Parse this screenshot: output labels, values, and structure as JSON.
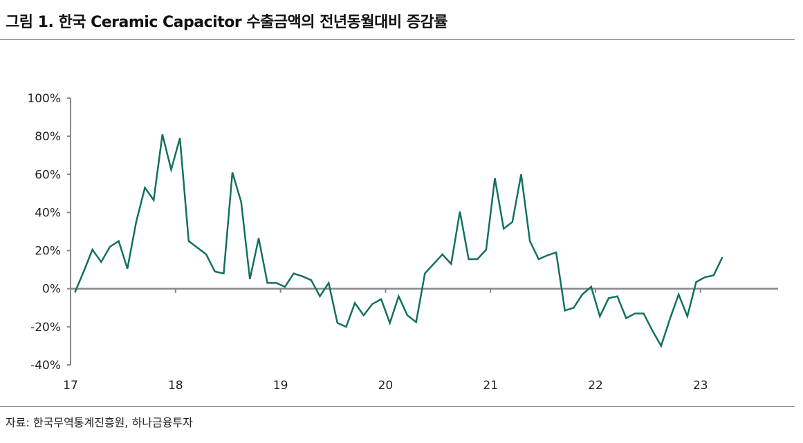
{
  "title": "그림 1. 한국 Ceramic Capacitor 수출금액의 전년동월대비 증감률",
  "source": "자료: 한국무역통계진흥원, 하나금융투자",
  "chart_data": {
    "type": "line",
    "title": "그림 1. 한국 Ceramic Capacitor 수출금액의 전년동월대비 증감률",
    "xlabel": "",
    "ylabel": "",
    "ylim": [
      -40,
      100
    ],
    "yticks": [
      "-40%",
      "-20%",
      "0%",
      "20%",
      "40%",
      "60%",
      "80%",
      "100%"
    ],
    "xticks": [
      "17",
      "18",
      "19",
      "20",
      "21",
      "22",
      "23"
    ],
    "x_start": "2017-01",
    "frequency": "monthly",
    "grid": false,
    "line_color": "#13705f",
    "values": [
      -2,
      9,
      20.5,
      14,
      22,
      25,
      10.5,
      35,
      53,
      46.5,
      81,
      62.5,
      79,
      25,
      21.5,
      18,
      9,
      8,
      61,
      45.5,
      5,
      26.5,
      3,
      3,
      1,
      8,
      6.5,
      4.5,
      -4,
      3,
      -18,
      -20,
      -7.5,
      -14,
      -8,
      -5.5,
      -18,
      -4,
      -14,
      -17.5,
      8,
      13,
      18,
      13,
      40.5,
      15.5,
      15.5,
      20.5,
      58,
      31.5,
      35,
      60,
      25,
      15.5,
      17.5,
      19,
      -11.5,
      -10,
      -3,
      1,
      -14.5,
      -5,
      -4,
      -15.5,
      -13,
      -13,
      -22,
      -30,
      -16,
      -3,
      -14.5,
      3.5,
      6,
      7,
      16.5
    ]
  }
}
